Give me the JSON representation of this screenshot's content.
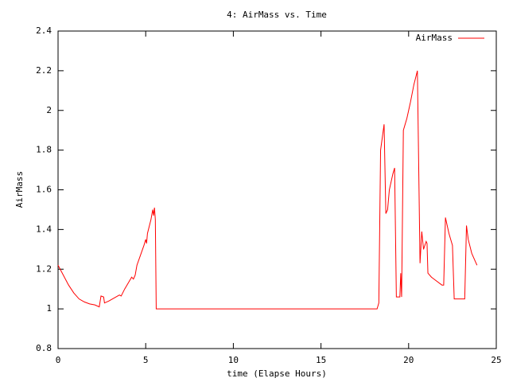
{
  "chart_data": {
    "type": "line",
    "title": "4: AirMass vs. Time",
    "x_label": "time (Elapse Hours)",
    "y_label": "AirMass",
    "xlim": [
      0,
      25
    ],
    "xticks": [
      0,
      5,
      10,
      15,
      20,
      25
    ],
    "ylim": [
      0.8,
      2.4
    ],
    "yticks": [
      0.8,
      1,
      1.2,
      1.4,
      1.6,
      1.8,
      2,
      2.2,
      2.4
    ],
    "legend": "top-right",
    "x": [
      0,
      0.3,
      0.6,
      0.9,
      1.2,
      1.5,
      1.8,
      2.1,
      2.35,
      2.45,
      2.6,
      2.65,
      2.9,
      3.2,
      3.5,
      3.6,
      3.8,
      4.0,
      4.2,
      4.3,
      4.4,
      4.5,
      4.7,
      4.9,
      5.0,
      5.05,
      5.1,
      5.3,
      5.4,
      5.45,
      5.5,
      5.55,
      5.6,
      18.2,
      18.3,
      18.4,
      18.6,
      18.7,
      18.8,
      18.9,
      19.1,
      19.2,
      19.3,
      19.5,
      19.55,
      19.6,
      19.7,
      19.9,
      20.1,
      20.3,
      20.5,
      20.65,
      20.75,
      20.85,
      21.0,
      21.05,
      21.1,
      21.3,
      21.6,
      21.9,
      22.0,
      22.1,
      22.3,
      22.5,
      22.6,
      23.0,
      23.2,
      23.3,
      23.4,
      23.6,
      23.8,
      23.9
    ],
    "series": [
      {
        "name": "AirMass",
        "color": "#ff0000",
        "values": [
          1.22,
          1.17,
          1.12,
          1.08,
          1.05,
          1.035,
          1.025,
          1.02,
          1.01,
          1.065,
          1.06,
          1.03,
          1.04,
          1.055,
          1.07,
          1.065,
          1.1,
          1.13,
          1.16,
          1.15,
          1.17,
          1.22,
          1.27,
          1.32,
          1.35,
          1.33,
          1.38,
          1.45,
          1.5,
          1.47,
          1.51,
          1.45,
          1.0,
          1.0,
          1.03,
          1.8,
          1.93,
          1.48,
          1.5,
          1.6,
          1.68,
          1.71,
          1.06,
          1.06,
          1.18,
          1.06,
          1.9,
          1.96,
          2.04,
          2.13,
          2.2,
          1.23,
          1.39,
          1.3,
          1.34,
          1.33,
          1.18,
          1.16,
          1.14,
          1.12,
          1.12,
          1.46,
          1.38,
          1.32,
          1.05,
          1.05,
          1.05,
          1.42,
          1.35,
          1.28,
          1.24,
          1.22
        ]
      }
    ]
  }
}
